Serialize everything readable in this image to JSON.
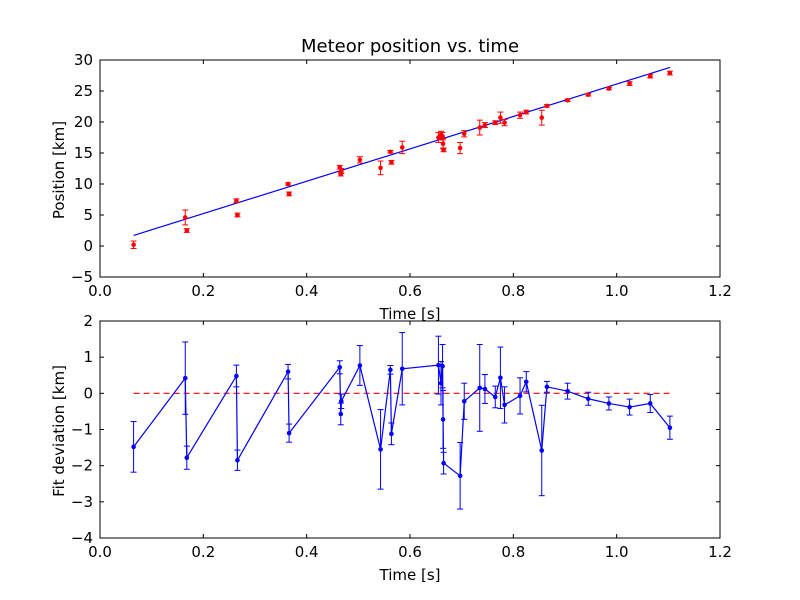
{
  "colors": {
    "fit_line": "#0000ff",
    "data_points": "#ff0000",
    "deviation_line": "#0000ff",
    "zero_line": "#ff0000",
    "frame": "#000000",
    "background": "#ffffff"
  },
  "chart_data": [
    {
      "type": "scatter",
      "title": "Meteor position vs. time",
      "xlabel": "Time [s]",
      "ylabel": "Position [km]",
      "xlim": [
        0.0,
        1.2
      ],
      "ylim": [
        -5,
        30
      ],
      "xticks": [
        "0.0",
        "0.2",
        "0.4",
        "0.6",
        "0.8",
        "1.0",
        "1.2"
      ],
      "yticks": [
        "−5",
        "0",
        "5",
        "10",
        "15",
        "20",
        "25",
        "30"
      ],
      "grid": false,
      "fit_line": {
        "x": [
          0.065,
          1.103
        ],
        "y": [
          1.7,
          28.8
        ]
      },
      "points": [
        {
          "x": 0.065,
          "y": 0.2,
          "err": 0.6
        },
        {
          "x": 0.165,
          "y": 4.6,
          "err": 1.2
        },
        {
          "x": 0.168,
          "y": 2.5,
          "err": 0.3
        },
        {
          "x": 0.264,
          "y": 7.3,
          "err": 0.3
        },
        {
          "x": 0.266,
          "y": 5.0,
          "err": 0.3
        },
        {
          "x": 0.364,
          "y": 10.0,
          "err": 0.2
        },
        {
          "x": 0.366,
          "y": 8.4,
          "err": 0.3
        },
        {
          "x": 0.464,
          "y": 12.7,
          "err": 0.3
        },
        {
          "x": 0.466,
          "y": 11.6,
          "err": 0.3
        },
        {
          "x": 0.467,
          "y": 12.1,
          "err": 0.4
        },
        {
          "x": 0.503,
          "y": 13.9,
          "err": 0.5
        },
        {
          "x": 0.543,
          "y": 12.6,
          "err": 1.1
        },
        {
          "x": 0.562,
          "y": 15.2,
          "err": 0.2
        },
        {
          "x": 0.564,
          "y": 13.5,
          "err": 0.3
        },
        {
          "x": 0.585,
          "y": 15.9,
          "err": 1.0
        },
        {
          "x": 0.655,
          "y": 17.5,
          "err": 0.8
        },
        {
          "x": 0.66,
          "y": 17.9,
          "err": 0.6
        },
        {
          "x": 0.663,
          "y": 17.7,
          "err": 0.6
        },
        {
          "x": 0.664,
          "y": 16.5,
          "err": 0.8
        },
        {
          "x": 0.665,
          "y": 15.5,
          "err": 0.3
        },
        {
          "x": 0.697,
          "y": 15.8,
          "err": 0.9
        },
        {
          "x": 0.705,
          "y": 18.1,
          "err": 0.5
        },
        {
          "x": 0.735,
          "y": 19.1,
          "err": 1.2
        },
        {
          "x": 0.745,
          "y": 19.5,
          "err": 0.4
        },
        {
          "x": 0.765,
          "y": 19.9,
          "err": 0.3
        },
        {
          "x": 0.775,
          "y": 20.7,
          "err": 0.9
        },
        {
          "x": 0.783,
          "y": 19.9,
          "err": 0.5
        },
        {
          "x": 0.813,
          "y": 21.1,
          "err": 0.5
        },
        {
          "x": 0.825,
          "y": 21.6,
          "err": 0.3
        },
        {
          "x": 0.855,
          "y": 20.7,
          "err": 1.2
        },
        {
          "x": 0.865,
          "y": 22.6,
          "err": 0.2
        },
        {
          "x": 0.905,
          "y": 23.5,
          "err": 0.2
        },
        {
          "x": 0.945,
          "y": 24.4,
          "err": 0.2
        },
        {
          "x": 0.985,
          "y": 25.4,
          "err": 0.2
        },
        {
          "x": 1.025,
          "y": 26.2,
          "err": 0.3
        },
        {
          "x": 1.065,
          "y": 27.4,
          "err": 0.3
        },
        {
          "x": 1.103,
          "y": 27.9,
          "err": 0.3
        }
      ]
    },
    {
      "type": "line",
      "xlabel": "Time [s]",
      "ylabel": "Fit deviation [km]",
      "xlim": [
        0.0,
        1.2
      ],
      "ylim": [
        -4,
        2
      ],
      "xticks": [
        "0.0",
        "0.2",
        "0.4",
        "0.6",
        "0.8",
        "1.0",
        "1.2"
      ],
      "yticks": [
        "−4",
        "−3",
        "−2",
        "−1",
        "0",
        "1",
        "2"
      ],
      "grid": false,
      "reference_line": {
        "y": 0,
        "x": [
          0.065,
          1.103
        ],
        "style": "dashed"
      },
      "points": [
        {
          "x": 0.065,
          "y": -1.48,
          "err": 0.7
        },
        {
          "x": 0.165,
          "y": 0.42,
          "err": 1.0
        },
        {
          "x": 0.168,
          "y": -1.78,
          "err": 0.32
        },
        {
          "x": 0.264,
          "y": 0.48,
          "err": 0.3
        },
        {
          "x": 0.266,
          "y": -1.85,
          "err": 0.28
        },
        {
          "x": 0.364,
          "y": 0.6,
          "err": 0.2
        },
        {
          "x": 0.366,
          "y": -1.1,
          "err": 0.25
        },
        {
          "x": 0.464,
          "y": 0.72,
          "err": 0.18
        },
        {
          "x": 0.466,
          "y": -0.57,
          "err": 0.3
        },
        {
          "x": 0.467,
          "y": -0.22,
          "err": 0.2
        },
        {
          "x": 0.503,
          "y": 0.77,
          "err": 0.55
        },
        {
          "x": 0.543,
          "y": -1.55,
          "err": 1.1
        },
        {
          "x": 0.562,
          "y": 0.65,
          "err": 0.12
        },
        {
          "x": 0.564,
          "y": -1.12,
          "err": 0.3
        },
        {
          "x": 0.585,
          "y": 0.68,
          "err": 1.0
        },
        {
          "x": 0.655,
          "y": 0.78,
          "err": 0.8
        },
        {
          "x": 0.66,
          "y": 0.28,
          "err": 0.6
        },
        {
          "x": 0.663,
          "y": 0.75,
          "err": 0.6
        },
        {
          "x": 0.664,
          "y": -0.72,
          "err": 0.8
        },
        {
          "x": 0.665,
          "y": -1.93,
          "err": 0.3
        },
        {
          "x": 0.697,
          "y": -2.28,
          "err": 0.92
        },
        {
          "x": 0.705,
          "y": -0.22,
          "err": 0.5
        },
        {
          "x": 0.735,
          "y": 0.15,
          "err": 1.2
        },
        {
          "x": 0.745,
          "y": 0.12,
          "err": 0.4
        },
        {
          "x": 0.765,
          "y": -0.1,
          "err": 0.3
        },
        {
          "x": 0.775,
          "y": 0.43,
          "err": 0.85
        },
        {
          "x": 0.783,
          "y": -0.32,
          "err": 0.5
        },
        {
          "x": 0.813,
          "y": -0.07,
          "err": 0.5
        },
        {
          "x": 0.825,
          "y": 0.32,
          "err": 0.28
        },
        {
          "x": 0.855,
          "y": -1.58,
          "err": 1.25
        },
        {
          "x": 0.865,
          "y": 0.18,
          "err": 0.15
        },
        {
          "x": 0.905,
          "y": 0.06,
          "err": 0.22
        },
        {
          "x": 0.945,
          "y": -0.15,
          "err": 0.18
        },
        {
          "x": 0.985,
          "y": -0.28,
          "err": 0.18
        },
        {
          "x": 1.025,
          "y": -0.38,
          "err": 0.22
        },
        {
          "x": 1.065,
          "y": -0.28,
          "err": 0.25
        },
        {
          "x": 1.103,
          "y": -0.95,
          "err": 0.32
        }
      ]
    }
  ]
}
